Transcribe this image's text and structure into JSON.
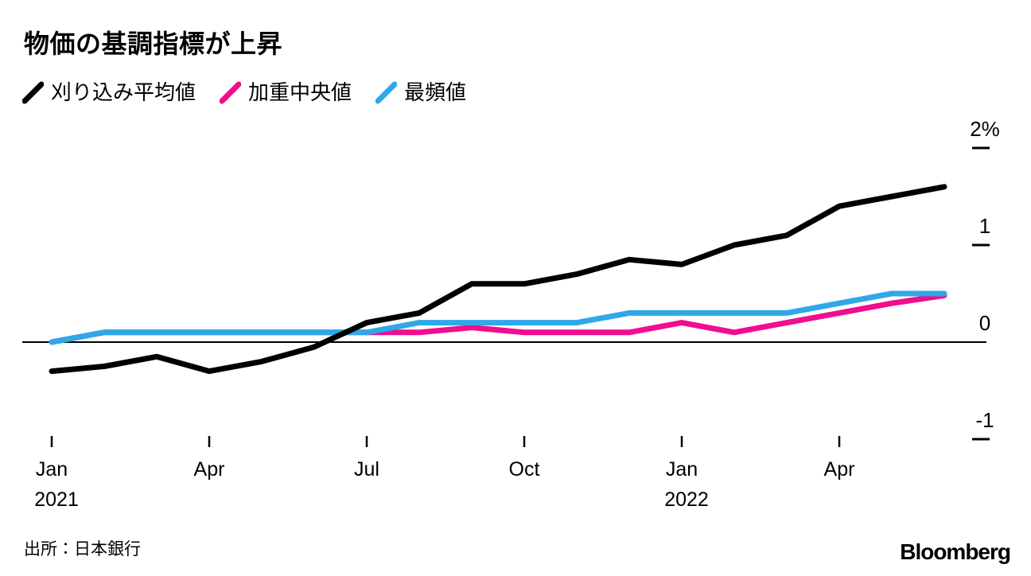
{
  "title": "物価の基調指標が上昇",
  "legend": [
    {
      "id": "trimmed-mean",
      "label": "刈り込み平均値",
      "color": "#000000"
    },
    {
      "id": "weighted-median",
      "label": "加重中央値",
      "color": "#F00D8E"
    },
    {
      "id": "mode",
      "label": "最頻値",
      "color": "#2FA8E8"
    }
  ],
  "footer": {
    "source": "出所：日本銀行",
    "logo": "Bloomberg"
  },
  "chart_data": {
    "type": "line",
    "title": "物価の基調指標が上昇",
    "x": [
      "2021-01",
      "2021-02",
      "2021-03",
      "2021-04",
      "2021-05",
      "2021-06",
      "2021-07",
      "2021-08",
      "2021-09",
      "2021-10",
      "2021-11",
      "2021-12",
      "2022-01",
      "2022-02",
      "2022-03",
      "2022-04",
      "2022-05",
      "2022-06"
    ],
    "series": [
      {
        "id": "trimmed-mean",
        "name": "刈り込み平均値",
        "color": "#000000",
        "values": [
          -0.3,
          -0.25,
          -0.15,
          -0.3,
          -0.2,
          -0.05,
          0.2,
          0.3,
          0.6,
          0.6,
          0.7,
          0.85,
          0.8,
          1.0,
          1.1,
          1.4,
          1.5,
          1.6
        ]
      },
      {
        "id": "weighted-median",
        "name": "加重中央値",
        "color": "#F00D8E",
        "values": [
          0.0,
          0.1,
          0.1,
          0.1,
          0.1,
          0.1,
          0.1,
          0.1,
          0.15,
          0.1,
          0.1,
          0.1,
          0.2,
          0.1,
          0.2,
          0.3,
          0.4,
          0.48
        ]
      },
      {
        "id": "mode",
        "name": "最頻値",
        "color": "#2FA8E8",
        "values": [
          0.0,
          0.1,
          0.1,
          0.1,
          0.1,
          0.1,
          0.1,
          0.2,
          0.2,
          0.2,
          0.2,
          0.3,
          0.3,
          0.3,
          0.3,
          0.4,
          0.5,
          0.5
        ]
      }
    ],
    "y_axis": {
      "unit": "%",
      "range": [
        -1.5,
        2.25
      ],
      "ticks": [
        {
          "label": "2%",
          "value": 2
        },
        {
          "label": "1",
          "value": 1
        },
        {
          "label": "0",
          "value": 0
        },
        {
          "label": "-1",
          "value": -1
        }
      ]
    },
    "x_axis": {
      "ticks": [
        {
          "label": "Jan",
          "year": "2021",
          "month_index": 0
        },
        {
          "label": "Apr",
          "month_index": 3
        },
        {
          "label": "Jul",
          "month_index": 6
        },
        {
          "label": "Oct",
          "month_index": 9
        },
        {
          "label": "Jan",
          "year": "2022",
          "month_index": 12
        },
        {
          "label": "Apr",
          "month_index": 15
        }
      ]
    },
    "legend_position": "top",
    "grid": false
  }
}
